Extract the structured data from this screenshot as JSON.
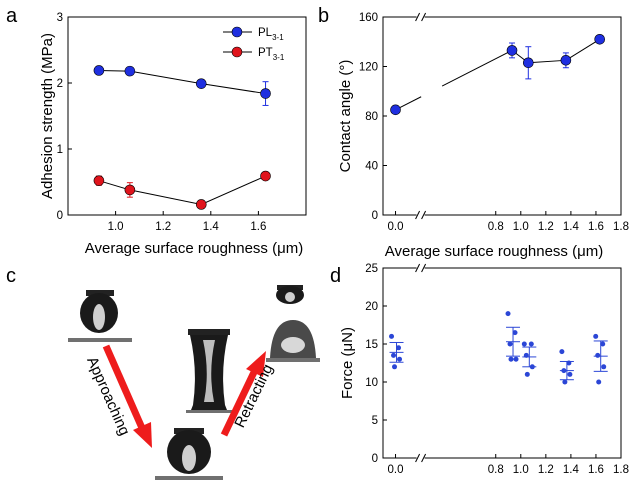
{
  "panel_labels": {
    "a": "a",
    "b": "b",
    "c": "c",
    "d": "d"
  },
  "colors": {
    "blue": "#1f2fe0",
    "red": "#e0141c",
    "arrow": "#ee1c1c",
    "point": "#2b46d6",
    "line": "#000000"
  },
  "chart_data": [
    {
      "panel": "a",
      "type": "line",
      "xlabel": "Average surface roughness  (μm)",
      "ylabel": "Adhesion strength (MPa)",
      "xlim": [
        0.8,
        1.8
      ],
      "ylim": [
        0,
        3
      ],
      "xticks": [
        "1.0",
        "1.2",
        "1.4",
        "1.6"
      ],
      "xtick_values": [
        1.0,
        1.2,
        1.4,
        1.6
      ],
      "yticks": [
        "0",
        "1",
        "2",
        "3"
      ],
      "ytick_values": [
        0,
        1,
        2,
        3
      ],
      "legend_position": "top-right",
      "series": [
        {
          "name": "PL",
          "name_sub": "3-1",
          "color": "blue",
          "x": [
            0.93,
            1.06,
            1.36,
            1.63
          ],
          "y": [
            2.19,
            2.18,
            1.99,
            1.84
          ],
          "err": [
            0.03,
            0.03,
            0.03,
            0.18
          ]
        },
        {
          "name": "PT",
          "name_sub": "3-1",
          "color": "red",
          "x": [
            0.93,
            1.06,
            1.36,
            1.63
          ],
          "y": [
            0.52,
            0.38,
            0.16,
            0.59
          ],
          "err": [
            0.07,
            0.11,
            0.03,
            0.04
          ]
        }
      ]
    },
    {
      "panel": "b",
      "type": "line",
      "xlabel": "Average surface roughness  (μm)",
      "ylabel": "Contact angle (°)",
      "xlim": [
        -0.1,
        1.8
      ],
      "ylim": [
        0,
        160
      ],
      "axis_break_x": 0.2,
      "xticks": [
        "0.0",
        "0.8",
        "1.0",
        "1.2",
        "1.4",
        "1.6",
        "1.8"
      ],
      "xtick_values": [
        0.0,
        0.8,
        1.0,
        1.2,
        1.4,
        1.6,
        1.8
      ],
      "yticks": [
        "0",
        "40",
        "80",
        "120",
        "160"
      ],
      "ytick_values": [
        0,
        40,
        80,
        120,
        160
      ],
      "series": [
        {
          "color": "blue",
          "x": [
            0.0,
            0.93,
            1.06,
            1.36,
            1.63
          ],
          "y": [
            85,
            133,
            123,
            125,
            142
          ],
          "err": [
            1,
            6,
            13,
            6,
            2
          ]
        }
      ]
    },
    {
      "panel": "d",
      "type": "scatter",
      "xlabel": "",
      "ylabel": "Force (μN)",
      "xlim": [
        -0.1,
        1.8
      ],
      "ylim": [
        0,
        25
      ],
      "axis_break_x": 0.2,
      "xticks": [
        "0.0",
        "0.8",
        "1.0",
        "1.2",
        "1.4",
        "1.6",
        "1.8"
      ],
      "xtick_values": [
        0.0,
        0.8,
        1.0,
        1.2,
        1.4,
        1.6,
        1.8
      ],
      "yticks": [
        "0",
        "5",
        "10",
        "15",
        "20",
        "25"
      ],
      "ytick_values": [
        0,
        5,
        10,
        15,
        20,
        25
      ],
      "groups": [
        {
          "x": 0.0,
          "points": [
            16,
            14.5,
            13.5,
            13,
            12
          ],
          "mean": 13.9,
          "sd": 1.3
        },
        {
          "x": 0.93,
          "points": [
            19,
            16.5,
            15,
            13,
            13
          ],
          "mean": 15.3,
          "sd": 1.9
        },
        {
          "x": 1.06,
          "points": [
            15,
            15,
            13.5,
            12,
            11
          ],
          "mean": 13.3,
          "sd": 1.3
        },
        {
          "x": 1.36,
          "points": [
            14,
            12.5,
            11.5,
            11,
            10
          ],
          "mean": 11.5,
          "sd": 1.2
        },
        {
          "x": 1.63,
          "points": [
            16,
            15,
            13.5,
            12,
            10
          ],
          "mean": 13.4,
          "sd": 2.0
        }
      ]
    }
  ],
  "photo_panel": {
    "approaching_label": "Approaching",
    "retracting_label": "Retracting"
  }
}
